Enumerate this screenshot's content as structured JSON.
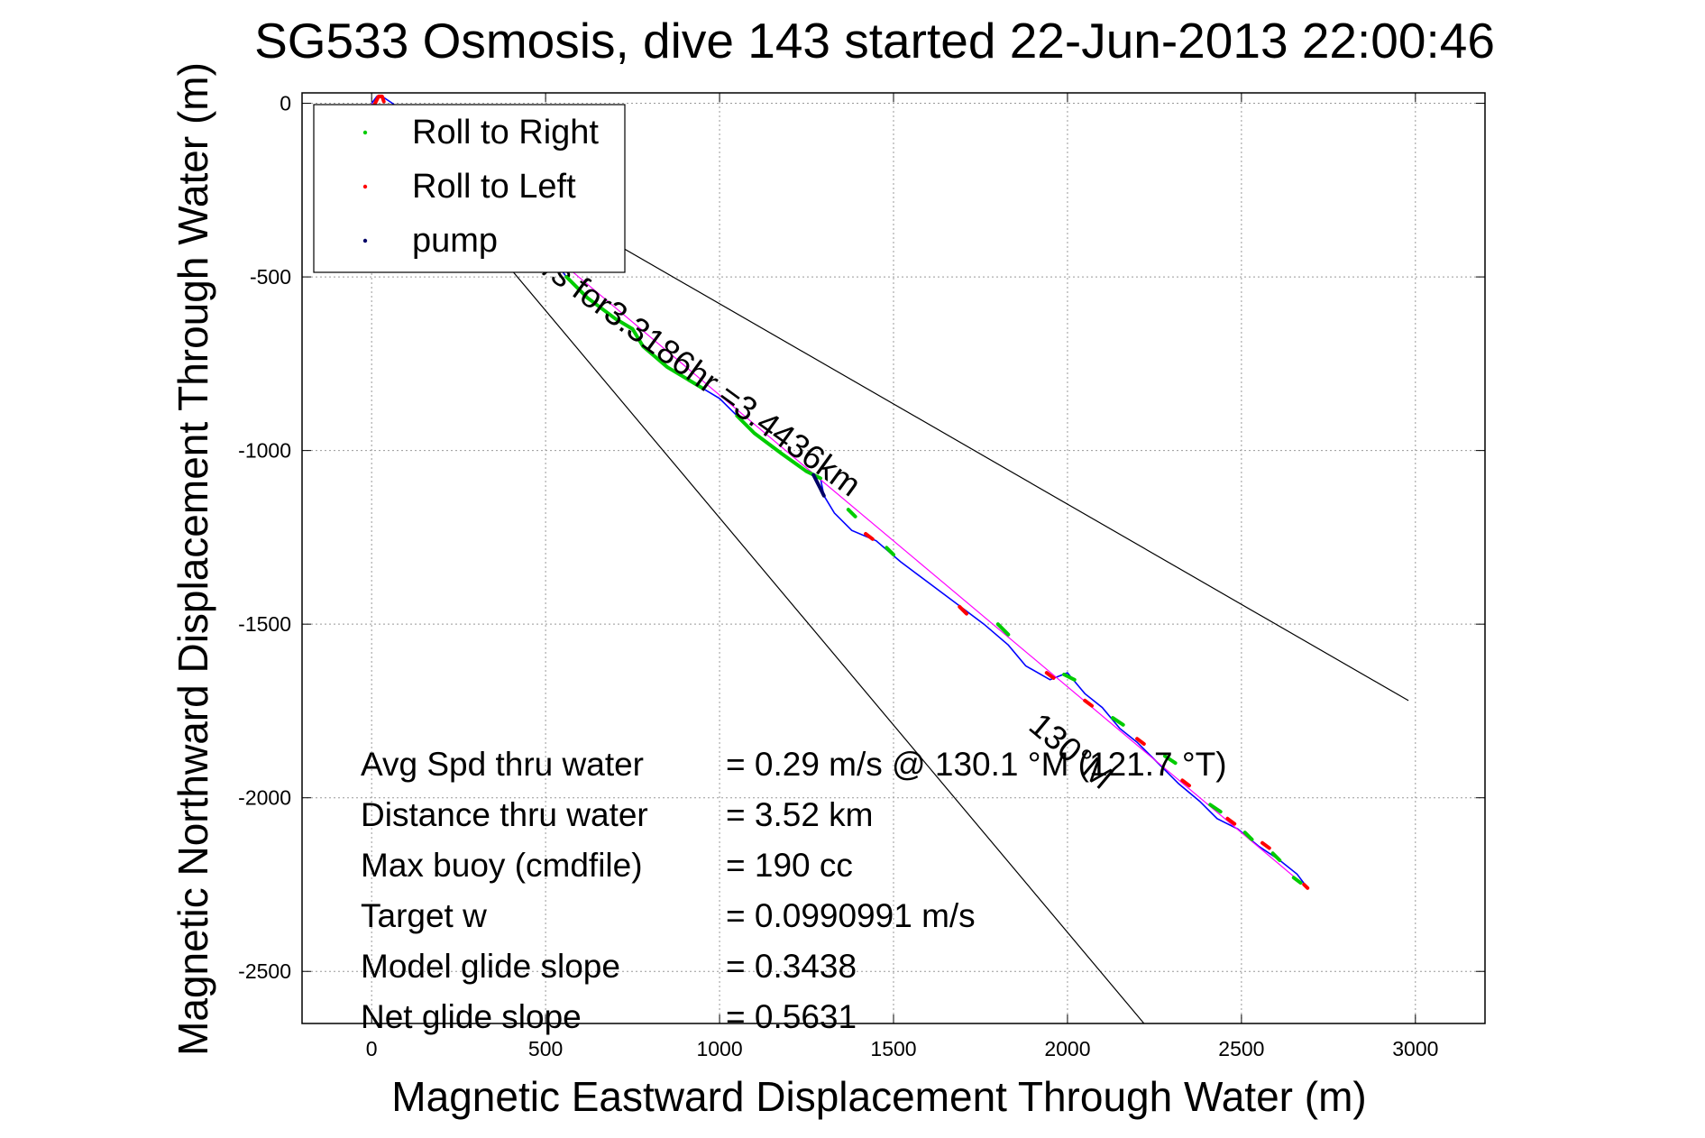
{
  "chart_data": {
    "type": "line",
    "title": "SG533 Osmosis, dive 143 started 22-Jun-2013 22:00:46",
    "xlabel": "Magnetic Eastward Displacement Through Water (m)",
    "ylabel": "Magnetic Northward Displacement Through Water (m)",
    "xlim": [
      -200,
      3200
    ],
    "ylim": [
      -2650,
      30
    ],
    "xticks": [
      0,
      500,
      1000,
      1500,
      2000,
      2500,
      3000
    ],
    "yticks": [
      0,
      -500,
      -1000,
      -1500,
      -2000,
      -2500
    ],
    "grid": true,
    "legend_position": "top-left",
    "legend": [
      {
        "label": "Roll to Right",
        "color": "#00cc00"
      },
      {
        "label": "Roll to Left",
        "color": "#ff0000"
      },
      {
        "label": "pump",
        "color": "#000066"
      }
    ],
    "series": [
      {
        "color": "#0000ff",
        "x": [
          0,
          15,
          30,
          60,
          120,
          200,
          300,
          400,
          450,
          500,
          560,
          620,
          700,
          750,
          780,
          850,
          950,
          1000,
          1050,
          1100,
          1180,
          1250,
          1290,
          1300,
          1330,
          1380,
          1450,
          1520,
          1600,
          1680,
          1760,
          1830,
          1880,
          1950,
          2000,
          2050,
          2100,
          2150,
          2200,
          2260,
          2320,
          2380,
          2430,
          2490,
          2550,
          2610,
          2660,
          2690
        ],
        "y": [
          0,
          20,
          20,
          0,
          -50,
          -140,
          -230,
          -330,
          -380,
          -420,
          -500,
          -560,
          -620,
          -650,
          -700,
          -760,
          -820,
          -850,
          -900,
          -950,
          -1010,
          -1060,
          -1080,
          -1130,
          -1180,
          -1230,
          -1260,
          -1320,
          -1380,
          -1440,
          -1500,
          -1560,
          -1620,
          -1660,
          -1640,
          -1700,
          -1740,
          -1800,
          -1840,
          -1900,
          -1960,
          -2010,
          -2060,
          -2090,
          -2140,
          -2180,
          -2220,
          -2260
        ]
      },
      {
        "color": "#ff00ff",
        "x": [
          0,
          2690
        ],
        "y": [
          0,
          -2260
        ]
      }
    ],
    "roll_right_segments": [
      {
        "x": [
          560,
          620,
          700,
          750,
          780,
          850,
          950
        ],
        "y": [
          -500,
          -560,
          -620,
          -650,
          -700,
          -760,
          -820
        ]
      },
      {
        "x": [
          1050,
          1100,
          1180,
          1250,
          1290
        ],
        "y": [
          -900,
          -950,
          -1010,
          -1060,
          -1080
        ]
      },
      {
        "x": [
          1370,
          1390
        ],
        "y": [
          -1170,
          -1190
        ]
      },
      {
        "x": [
          1480,
          1500
        ],
        "y": [
          -1280,
          -1300
        ]
      },
      {
        "x": [
          1800,
          1830
        ],
        "y": [
          -1500,
          -1530
        ]
      },
      {
        "x": [
          1990,
          2020
        ],
        "y": [
          -1645,
          -1660
        ]
      },
      {
        "x": [
          2130,
          2160
        ],
        "y": [
          -1770,
          -1790
        ]
      },
      {
        "x": [
          2280,
          2310
        ],
        "y": [
          -1880,
          -1900
        ]
      },
      {
        "x": [
          2410,
          2440
        ],
        "y": [
          -2020,
          -2040
        ]
      },
      {
        "x": [
          2510,
          2530
        ],
        "y": [
          -2100,
          -2120
        ]
      },
      {
        "x": [
          2590,
          2610
        ],
        "y": [
          -2160,
          -2180
        ]
      },
      {
        "x": [
          2650,
          2670
        ],
        "y": [
          -2230,
          -2245
        ]
      }
    ],
    "roll_left_segments": [
      {
        "x": [
          10,
          20,
          30,
          35
        ],
        "y": [
          0,
          20,
          20,
          5
        ]
      },
      {
        "x": [
          1420,
          1440
        ],
        "y": [
          -1240,
          -1255
        ]
      },
      {
        "x": [
          1690,
          1710
        ],
        "y": [
          -1450,
          -1470
        ]
      },
      {
        "x": [
          1940,
          1960
        ],
        "y": [
          -1640,
          -1655
        ]
      },
      {
        "x": [
          2050,
          2070
        ],
        "y": [
          -1720,
          -1735
        ]
      },
      {
        "x": [
          2200,
          2220
        ],
        "y": [
          -1830,
          -1845
        ]
      },
      {
        "x": [
          2330,
          2350
        ],
        "y": [
          -1950,
          -1965
        ]
      },
      {
        "x": [
          2460,
          2480
        ],
        "y": [
          -2060,
          -2075
        ]
      },
      {
        "x": [
          2560,
          2580
        ],
        "y": [
          -2130,
          -2145
        ]
      },
      {
        "x": [
          2680,
          2690
        ],
        "y": [
          -2250,
          -2260
        ]
      }
    ],
    "pump_segments": [
      {
        "x": [
          1270,
          1290,
          1300
        ],
        "y": [
          -1070,
          -1110,
          -1130
        ]
      }
    ],
    "reference_lines": [
      {
        "x": [
          0,
          2980
        ],
        "y": [
          0,
          -1720
        ]
      },
      {
        "x": [
          0,
          2220
        ],
        "y": [
          0,
          -2650
        ]
      }
    ],
    "annotations": [
      {
        "text": "m/s for3.3186hr =3.4436km",
        "x": 900,
        "y": -790
      },
      {
        "text": "130°M",
        "x": 1990,
        "y": -1890
      }
    ],
    "stats": [
      {
        "label": "Avg Spd thru water",
        "value": "=  0.29 m/s @ 130.1 °M (121.7 °T)"
      },
      {
        "label": "Distance thru water",
        "value": "=  3.52 km"
      },
      {
        "label": "Max buoy (cmdfile)",
        "value": "= 190 cc"
      },
      {
        "label": "Target w",
        "value": "= 0.0990991 m/s"
      },
      {
        "label": "Model glide slope",
        "value": "= 0.3438"
      },
      {
        "label": "Net glide slope",
        "value": "= 0.5631"
      }
    ]
  }
}
